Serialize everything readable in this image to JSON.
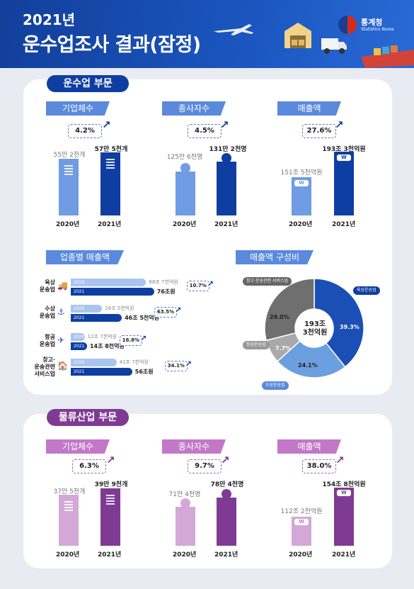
{
  "header": {
    "year": "2021년",
    "title": "운수업조사 결과(잠정)",
    "logo_name": "통계청",
    "logo_sub": "Statistics Korea"
  },
  "colors": {
    "blue_light": "#6f9ce2",
    "blue_dark": "#0f3ea3",
    "purple_light": "#d4a8d6",
    "purple_dark": "#7f3b93"
  },
  "transport": {
    "section_label": "운수업 부문",
    "companies": {
      "label": "기업체수",
      "change": "4.2%",
      "v2020": "55만 2천개",
      "v2021": "57만 5천개"
    },
    "employees": {
      "label": "종사자수",
      "change": "4.5%",
      "v2020": "125만 6천명",
      "v2021": "131만 2천명"
    },
    "sales": {
      "label": "매출액",
      "change": "27.6%",
      "v2020": "151조 5천억원",
      "v2021": "193조 3천억원"
    },
    "years": {
      "y2020": "2020년",
      "y2021": "2021년"
    },
    "won": "W"
  },
  "industry": {
    "label": "업종별 매출액",
    "rows": [
      {
        "name": "육상\n운송업",
        "y1": "2020",
        "y2": "2021",
        "v2020": "68조 7천억원",
        "v2021": "76조원",
        "change": "10.7%"
      },
      {
        "name": "수상\n운송업",
        "y1": "2020",
        "y2": "2021",
        "v2020": "28조 5천억원",
        "v2021": "46조 5천억원",
        "change": "63.5%"
      },
      {
        "name": "항공\n운송업",
        "y1": "2020",
        "y2": "2021",
        "v2020": "12조 7천억원",
        "v2021": "14조 8천억원",
        "change": "16.8%"
      },
      {
        "name": "창고·\n운송관련\n서비스업",
        "y1": "2020",
        "y2": "2021",
        "v2020": "41조 7천억원",
        "v2021": "56조원",
        "change": "34.1%"
      }
    ]
  },
  "composition": {
    "label": "매출액 구성비",
    "center": "193조\n3천억원",
    "slices": [
      {
        "name": "육상운송업",
        "pct": "39.3%",
        "color": "#1b4fb6"
      },
      {
        "name": "수상운송업",
        "pct": "24.1%",
        "color": "#6c9fe0"
      },
      {
        "name": "항공운송업",
        "pct": "7.7%",
        "color": "#a9a9a9"
      },
      {
        "name": "창고·운송관련 서비스업",
        "pct": "29.0%",
        "color": "#6f6f6f"
      }
    ]
  },
  "logistics": {
    "section_label": "물류산업 부문",
    "companies": {
      "label": "기업체수",
      "change": "6.3%",
      "v2020": "37만 5천개",
      "v2021": "39만 9천개"
    },
    "employees": {
      "label": "종사자수",
      "change": "9.7%",
      "v2020": "71만 4천명",
      "v2021": "78만 4천명"
    },
    "sales": {
      "label": "매출액",
      "change": "38.0%",
      "v2020": "112조 2천억원",
      "v2021": "154조 8천억원"
    },
    "years": {
      "y2020": "2020년",
      "y2021": "2021년"
    },
    "won": "W"
  },
  "chart_data": [
    {
      "type": "bar",
      "title": "기업체수",
      "categories": [
        "2020년",
        "2021년"
      ],
      "values": [
        55.2,
        57.5
      ],
      "unit": "만개"
    },
    {
      "type": "bar",
      "title": "종사자수",
      "categories": [
        "2020년",
        "2021년"
      ],
      "values": [
        125.6,
        131.2
      ],
      "unit": "만명"
    },
    {
      "type": "bar",
      "title": "매출액",
      "categories": [
        "2020년",
        "2021년"
      ],
      "values": [
        151.5,
        193.3
      ],
      "unit": "조원"
    },
    {
      "type": "bar",
      "title": "업종별 매출액",
      "categories": [
        "육상운송업",
        "수상운송업",
        "항공운송업",
        "창고·운송관련 서비스업"
      ],
      "series": [
        {
          "name": "2020",
          "values": [
            68.7,
            28.5,
            12.7,
            41.7
          ]
        },
        {
          "name": "2021",
          "values": [
            76.0,
            46.5,
            14.8,
            56.0
          ]
        }
      ],
      "unit": "조원"
    },
    {
      "type": "pie",
      "title": "매출액 구성비",
      "categories": [
        "육상운송업",
        "수상운송업",
        "항공운송업",
        "창고·운송관련 서비스업"
      ],
      "values": [
        39.3,
        24.1,
        7.7,
        29.0
      ]
    },
    {
      "type": "bar",
      "title": "기업체수",
      "categories": [
        "2020년",
        "2021년"
      ],
      "values": [
        37.5,
        39.9
      ],
      "unit": "만개"
    },
    {
      "type": "bar",
      "title": "종사자수",
      "categories": [
        "2020년",
        "2021년"
      ],
      "values": [
        71.4,
        78.4
      ],
      "unit": "만명"
    },
    {
      "type": "bar",
      "title": "매출액",
      "categories": [
        "2020년",
        "2021년"
      ],
      "values": [
        112.2,
        154.8
      ],
      "unit": "조원"
    }
  ]
}
